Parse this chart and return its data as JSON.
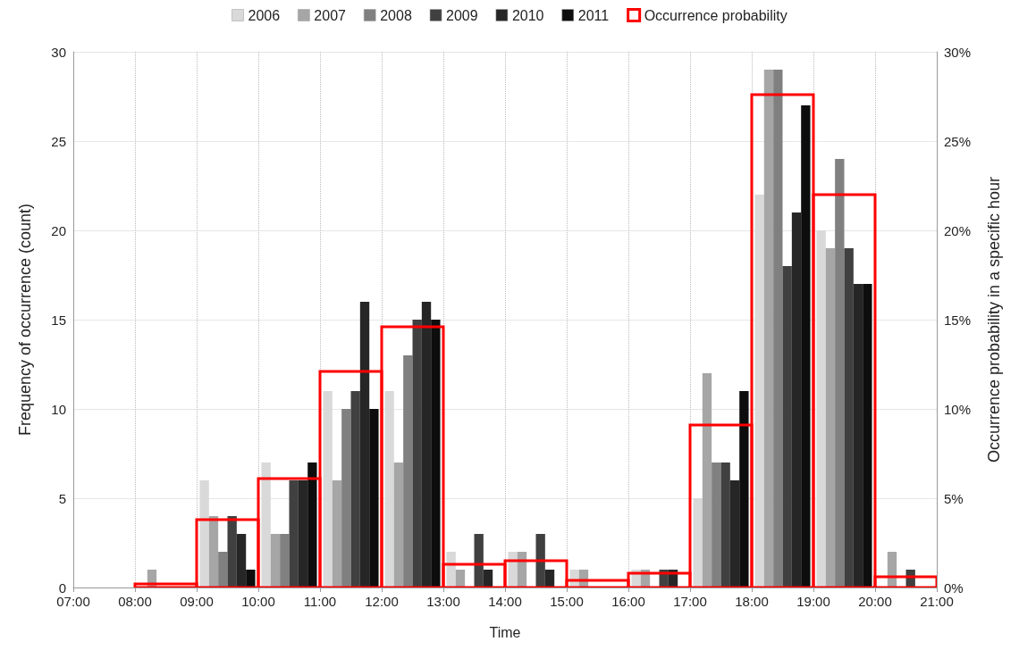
{
  "chart_data": {
    "type": "bar",
    "xlabel": "Time",
    "ylabel": "Frequency of occurrence (count)",
    "y2label": "Occurrence probability in a specific hour",
    "x": [
      8.5,
      9.5,
      10.5,
      11.5,
      12.5,
      13.5,
      14.5,
      15.5,
      16.5,
      17.5,
      18.5,
      19.5,
      20.5
    ],
    "series": [
      {
        "name": "2006",
        "color": "#d9d9d9",
        "values": [
          0,
          6,
          7,
          11,
          11,
          2,
          2,
          1,
          1,
          5,
          22,
          20,
          0
        ]
      },
      {
        "name": "2007",
        "color": "#a6a6a6",
        "values": [
          1,
          4,
          3,
          6,
          7,
          1,
          2,
          1,
          1,
          12,
          29,
          19,
          2
        ]
      },
      {
        "name": "2008",
        "color": "#808080",
        "values": [
          0,
          2,
          3,
          10,
          13,
          0,
          0,
          0,
          0,
          7,
          29,
          24,
          0
        ]
      },
      {
        "name": "2009",
        "color": "#404040",
        "values": [
          0,
          4,
          6,
          11,
          15,
          3,
          3,
          0,
          1,
          7,
          18,
          19,
          1
        ]
      },
      {
        "name": "2010",
        "color": "#262626",
        "values": [
          0,
          3,
          6,
          16,
          16,
          1,
          1,
          0,
          1,
          6,
          21,
          17,
          0
        ]
      },
      {
        "name": "2011",
        "color": "#0d0d0d",
        "values": [
          0,
          1,
          7,
          10,
          15,
          0,
          0,
          0,
          0,
          11,
          27,
          17,
          0
        ]
      },
      {
        "name": "Occurrence probability",
        "color": "#ff0000",
        "axis": "y2",
        "values": [
          0.2,
          3.8,
          6.1,
          12.1,
          14.6,
          1.3,
          1.5,
          0.4,
          0.8,
          9.1,
          27.6,
          22.0,
          0.6
        ]
      }
    ],
    "xlim": [
      7,
      21
    ],
    "xticks": [
      {
        "value": 7,
        "label": "07:00"
      },
      {
        "value": 8,
        "label": "08:00"
      },
      {
        "value": 9,
        "label": "09:00"
      },
      {
        "value": 10,
        "label": "10:00"
      },
      {
        "value": 11,
        "label": "11:00"
      },
      {
        "value": 12,
        "label": "12:00"
      },
      {
        "value": 13,
        "label": "13:00"
      },
      {
        "value": 14,
        "label": "14:00"
      },
      {
        "value": 15,
        "label": "15:00"
      },
      {
        "value": 16,
        "label": "16:00"
      },
      {
        "value": 17,
        "label": "17:00"
      },
      {
        "value": 18,
        "label": "18:00"
      },
      {
        "value": 19,
        "label": "19:00"
      },
      {
        "value": 20,
        "label": "20:00"
      },
      {
        "value": 21,
        "label": "21:00"
      }
    ],
    "ylim": [
      0,
      30
    ],
    "yticks": [
      0,
      5,
      10,
      15,
      20,
      25,
      30
    ],
    "y2lim": [
      0,
      30
    ],
    "y2ticks": [
      {
        "value": 0,
        "label": "0%"
      },
      {
        "value": 5,
        "label": "5%"
      },
      {
        "value": 10,
        "label": "10%"
      },
      {
        "value": 15,
        "label": "15%"
      },
      {
        "value": 20,
        "label": "20%"
      },
      {
        "value": 25,
        "label": "25%"
      },
      {
        "value": 30,
        "label": "30%"
      }
    ],
    "grid": true,
    "legend": "top"
  }
}
